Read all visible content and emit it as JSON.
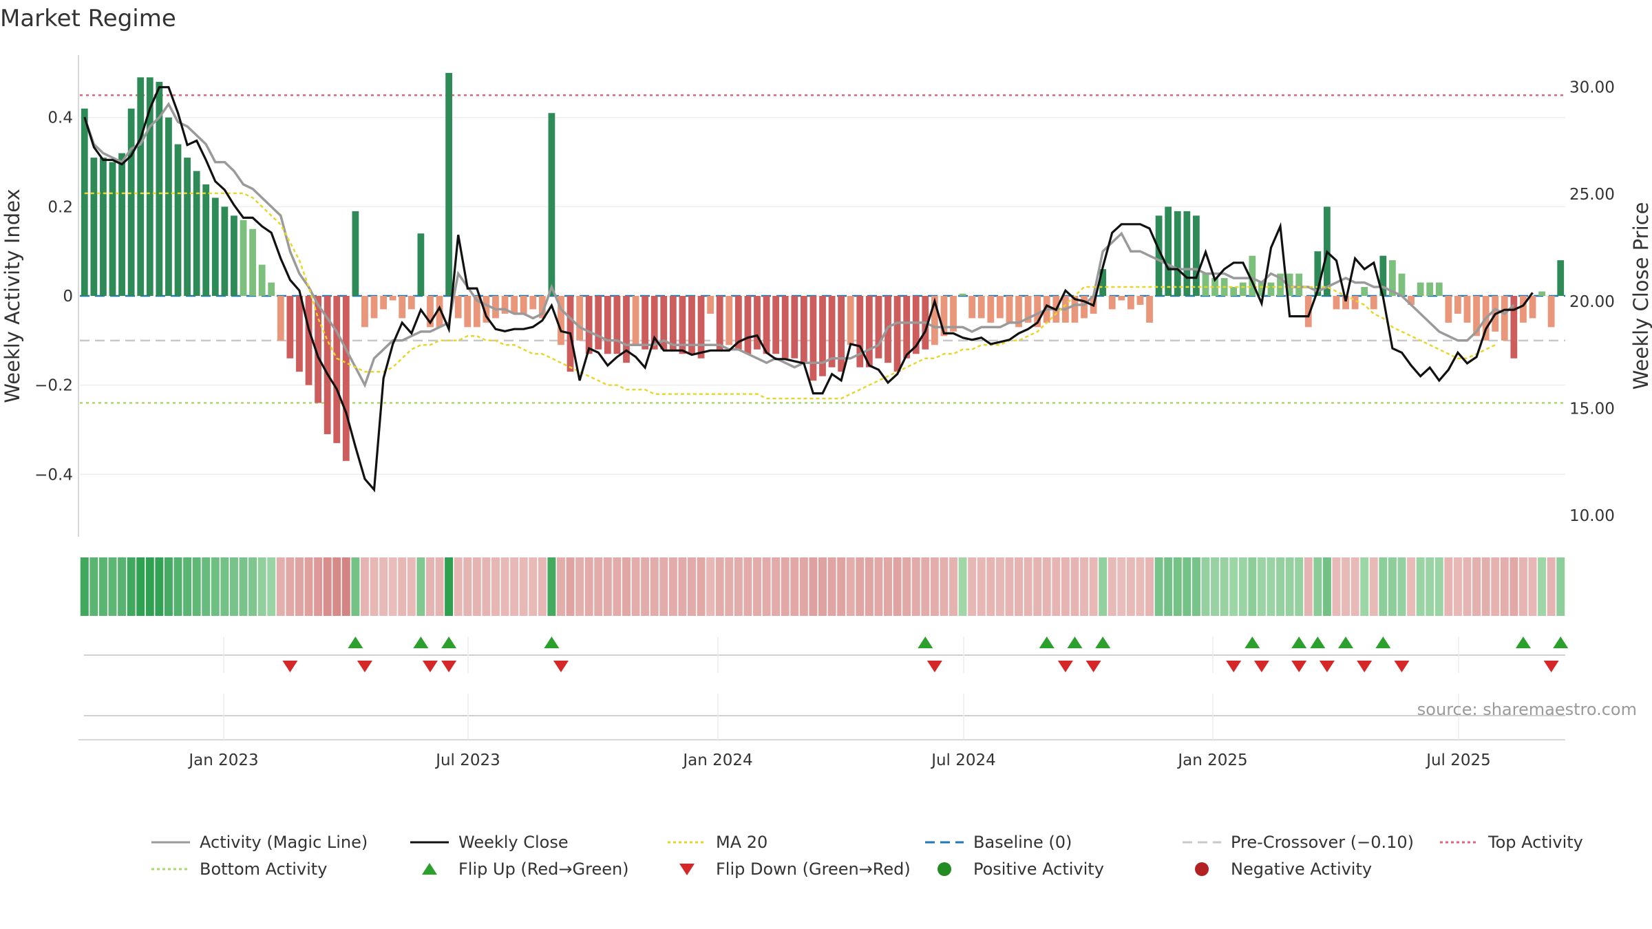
{
  "title": "Market Regime",
  "source": "source: sharemaestro.com",
  "colors": {
    "bar_pos_strong": "#2e8b57",
    "bar_pos_light": "#7dbf7d",
    "bar_neg_strong": "#cd5c5c",
    "bar_neg_light": "#e9967a",
    "magic_line": "#9a9a9a",
    "weekly_close": "#111111",
    "ma20": "#e8d62b",
    "baseline": "#1f77b4",
    "pre_crossover": "#c8c8c8",
    "top_activity": "#e06478",
    "bottom_activity": "#a6d96a",
    "flip_up": "#2ca02c",
    "flip_down": "#d62728",
    "positive": "#228b22",
    "negative": "#b22222"
  },
  "chart_data": {
    "type": "bar",
    "title": "Market Regime",
    "ylabel": "Weekly Activity Index",
    "y2label": "Weekly Close Price",
    "ylim": [
      -0.54,
      0.54
    ],
    "y2lim": [
      9.0,
      31.5
    ],
    "yticks": [
      "0.4",
      "0.2",
      "0",
      "−0.2",
      "−0.4"
    ],
    "y2ticks": [
      "30.00",
      "25.00",
      "20.00",
      "15.00",
      "10.00"
    ],
    "xticks": [
      "Jan 2023",
      "Jul 2023",
      "Jan 2024",
      "Jul 2024",
      "Jan 2025",
      "Jul 2025"
    ],
    "reference_lines": {
      "top_activity": 0.45,
      "pre_crossover": -0.1,
      "bottom_activity": -0.24,
      "baseline": 0
    },
    "series": [
      {
        "name": "Activity (Magic Line)",
        "values": [
          0.4,
          0.34,
          0.32,
          0.31,
          0.3,
          0.33,
          0.34,
          0.38,
          0.4,
          0.43,
          0.39,
          0.38,
          0.36,
          0.34,
          0.3,
          0.3,
          0.28,
          0.25,
          0.24,
          0.22,
          0.2,
          0.18,
          0.1,
          0.05,
          0.02,
          -0.02,
          -0.05,
          -0.08,
          -0.12,
          -0.16,
          -0.2,
          -0.14,
          -0.12,
          -0.1,
          -0.1,
          -0.09,
          -0.08,
          -0.08,
          -0.07,
          -0.06,
          0.05,
          0.02,
          -0.01,
          -0.02,
          -0.03,
          -0.03,
          -0.04,
          -0.04,
          -0.05,
          -0.04,
          0.02,
          -0.03,
          -0.05,
          -0.07,
          -0.08,
          -0.09,
          -0.1,
          -0.1,
          -0.11,
          -0.11,
          -0.11,
          -0.11,
          -0.1,
          -0.11,
          -0.11,
          -0.11,
          -0.11,
          -0.11,
          -0.11,
          -0.12,
          -0.12,
          -0.13,
          -0.14,
          -0.15,
          -0.14,
          -0.15,
          -0.16,
          -0.15,
          -0.15,
          -0.15,
          -0.14,
          -0.14,
          -0.14,
          -0.13,
          -0.12,
          -0.11,
          -0.07,
          -0.06,
          -0.06,
          -0.06,
          -0.06,
          -0.07,
          -0.07,
          -0.07,
          -0.07,
          -0.08,
          -0.07,
          -0.07,
          -0.07,
          -0.06,
          -0.06,
          -0.05,
          -0.04,
          -0.03,
          -0.03,
          -0.03,
          -0.02,
          -0.02,
          0.0,
          0.1,
          0.12,
          0.14,
          0.1,
          0.1,
          0.09,
          0.08,
          0.07,
          0.06,
          0.06,
          0.06,
          0.05,
          0.05,
          0.05,
          0.04,
          0.04,
          0.04,
          0.03,
          0.05,
          0.04,
          0.02,
          0.02,
          0.02,
          0.01,
          0.02,
          0.03,
          0.04,
          0.03,
          0.03,
          0.02,
          0.02,
          0.01,
          0.0,
          -0.02,
          -0.04,
          -0.06,
          -0.08,
          -0.09,
          -0.1,
          -0.1,
          -0.08,
          -0.05,
          -0.03,
          -0.04,
          -0.02
        ]
      },
      {
        "name": "Weekly Close",
        "values": [
          28.6,
          27.2,
          26.6,
          26.6,
          26.4,
          26.8,
          27.6,
          29.0,
          30.0,
          30.0,
          28.8,
          27.3,
          27.5,
          26.6,
          25.6,
          25.2,
          24.5,
          23.9,
          23.9,
          23.5,
          23.2,
          22.0,
          21.0,
          20.5,
          18.7,
          17.4,
          16.6,
          15.9,
          14.8,
          13.2,
          11.7,
          11.2,
          16.4,
          18.0,
          19.0,
          18.5,
          19.6,
          19.0,
          19.7,
          18.7,
          23.1,
          20.6,
          20.6,
          19.3,
          18.7,
          18.6,
          18.7,
          18.7,
          18.8,
          19.1,
          19.8,
          18.6,
          18.5,
          16.3,
          17.8,
          17.6,
          17.0,
          17.4,
          17.7,
          17.4,
          16.9,
          18.3,
          17.7,
          17.7,
          17.7,
          17.5,
          17.6,
          17.7,
          17.7,
          17.7,
          18.1,
          18.3,
          18.4,
          17.6,
          17.3,
          17.3,
          17.2,
          17.1,
          15.7,
          15.7,
          16.6,
          16.3,
          18.0,
          17.9,
          17.0,
          16.8,
          16.2,
          16.6,
          17.5,
          17.9,
          18.6,
          20.0,
          18.5,
          18.5,
          18.3,
          18.2,
          18.3,
          18.0,
          18.1,
          18.2,
          18.5,
          18.7,
          19.0,
          19.8,
          19.6,
          20.5,
          20.1,
          20.0,
          19.8,
          21.6,
          23.2,
          23.6,
          23.6,
          23.6,
          23.4,
          22.4,
          21.5,
          21.5,
          21.1,
          21.1,
          22.3,
          21.0,
          21.5,
          21.8,
          21.8,
          20.9,
          19.9,
          22.5,
          23.5,
          19.3,
          19.3,
          19.3,
          20.5,
          22.3,
          21.9,
          20.0,
          22.0,
          21.5,
          21.8,
          20.2,
          17.8,
          17.6,
          17.0,
          16.5,
          16.9,
          16.3,
          16.8,
          17.6,
          17.1,
          17.4,
          18.7,
          19.4,
          19.6,
          19.6,
          19.8,
          20.4
        ]
      },
      {
        "name": "MA 20",
        "values": [
          0.23,
          0.23,
          0.23,
          0.23,
          0.23,
          0.23,
          0.23,
          0.23,
          0.23,
          0.23,
          0.23,
          0.23,
          0.23,
          0.23,
          0.23,
          0.23,
          0.23,
          0.23,
          0.22,
          0.2,
          0.18,
          0.16,
          0.12,
          0.08,
          0.02,
          -0.05,
          -0.1,
          -0.14,
          -0.15,
          -0.16,
          -0.17,
          -0.17,
          -0.17,
          -0.16,
          -0.14,
          -0.12,
          -0.11,
          -0.11,
          -0.1,
          -0.1,
          -0.1,
          -0.09,
          -0.09,
          -0.1,
          -0.1,
          -0.11,
          -0.11,
          -0.12,
          -0.13,
          -0.13,
          -0.14,
          -0.15,
          -0.16,
          -0.17,
          -0.18,
          -0.19,
          -0.2,
          -0.2,
          -0.21,
          -0.21,
          -0.21,
          -0.22,
          -0.22,
          -0.22,
          -0.22,
          -0.22,
          -0.22,
          -0.22,
          -0.22,
          -0.22,
          -0.22,
          -0.22,
          -0.22,
          -0.23,
          -0.23,
          -0.23,
          -0.23,
          -0.23,
          -0.23,
          -0.23,
          -0.23,
          -0.23,
          -0.22,
          -0.21,
          -0.2,
          -0.19,
          -0.18,
          -0.17,
          -0.16,
          -0.15,
          -0.14,
          -0.14,
          -0.13,
          -0.13,
          -0.12,
          -0.12,
          -0.11,
          -0.11,
          -0.11,
          -0.1,
          -0.1,
          -0.09,
          -0.08,
          -0.06,
          -0.04,
          -0.02,
          0.0,
          0.02,
          0.02,
          0.02,
          0.02,
          0.02,
          0.02,
          0.02,
          0.02,
          0.02,
          0.02,
          0.02,
          0.02,
          0.02,
          0.02,
          0.02,
          0.02,
          0.02,
          0.02,
          0.02,
          0.02,
          0.02,
          0.02,
          0.02,
          0.02,
          0.02,
          0.02,
          0.02,
          0.01,
          0.0,
          -0.01,
          -0.02,
          -0.04,
          -0.05,
          -0.07,
          -0.08,
          -0.09,
          -0.1,
          -0.11,
          -0.12,
          -0.13,
          -0.14,
          -0.14,
          -0.13,
          -0.12,
          -0.11
        ]
      },
      {
        "name": "Weekly Activity Index",
        "values": [
          0.42,
          0.31,
          0.31,
          0.3,
          0.32,
          0.42,
          0.49,
          0.49,
          0.48,
          0.4,
          0.34,
          0.31,
          0.28,
          0.25,
          0.22,
          0.2,
          0.18,
          0.17,
          0.15,
          0.07,
          0.03,
          -0.1,
          -0.14,
          -0.17,
          -0.2,
          -0.24,
          -0.31,
          -0.33,
          -0.37,
          0.19,
          -0.07,
          -0.05,
          -0.03,
          -0.01,
          -0.05,
          -0.03,
          0.14,
          -0.07,
          -0.07,
          0.5,
          -0.05,
          -0.07,
          -0.07,
          -0.06,
          -0.05,
          -0.04,
          -0.04,
          -0.04,
          -0.03,
          -0.05,
          0.41,
          -0.11,
          -0.17,
          -0.1,
          -0.13,
          -0.12,
          -0.13,
          -0.13,
          -0.15,
          -0.11,
          -0.12,
          -0.12,
          -0.12,
          -0.12,
          -0.13,
          -0.13,
          -0.14,
          -0.04,
          -0.12,
          -0.11,
          -0.12,
          -0.13,
          -0.12,
          -0.13,
          -0.13,
          -0.14,
          -0.14,
          -0.15,
          -0.19,
          -0.18,
          -0.16,
          -0.17,
          -0.11,
          -0.16,
          -0.16,
          -0.14,
          -0.15,
          -0.17,
          -0.14,
          -0.13,
          -0.12,
          -0.11,
          -0.09,
          -0.08,
          0.005,
          -0.05,
          -0.05,
          -0.06,
          -0.05,
          -0.06,
          -0.07,
          -0.06,
          -0.07,
          -0.06,
          -0.06,
          -0.06,
          -0.06,
          -0.05,
          -0.04,
          0.06,
          -0.03,
          -0.01,
          -0.03,
          -0.02,
          -0.06,
          0.18,
          0.2,
          0.19,
          0.19,
          0.18,
          0.05,
          0.04,
          0.04,
          0.02,
          0.03,
          0.09,
          0.03,
          0.03,
          0.05,
          0.05,
          0.05,
          -0.07,
          0.1,
          0.2,
          -0.03,
          -0.03,
          -0.03,
          0.02,
          -0.03,
          0.09,
          0.08,
          0.05,
          -0.02,
          0.03,
          0.03,
          0.03,
          -0.06,
          -0.04,
          -0.06,
          -0.09,
          -0.1,
          -0.08,
          -0.1,
          -0.14,
          -0.06,
          -0.05,
          0.01,
          -0.07,
          0.08
        ]
      }
    ],
    "regime": [
      0.42,
      0.31,
      0.31,
      0.3,
      0.32,
      0.42,
      0.49,
      0.49,
      0.48,
      0.4,
      0.34,
      0.31,
      0.28,
      0.25,
      0.22,
      0.2,
      0.18,
      0.17,
      0.15,
      0.07,
      0.03,
      -0.1,
      -0.14,
      -0.17,
      -0.2,
      -0.24,
      -0.31,
      -0.33,
      -0.37,
      0.19,
      -0.07,
      -0.05,
      -0.03,
      -0.01,
      -0.05,
      -0.03,
      0.14,
      -0.07,
      -0.07,
      0.5,
      -0.05,
      -0.07,
      -0.07,
      -0.06,
      -0.05,
      -0.04,
      -0.04,
      -0.04,
      -0.03,
      -0.05,
      0.41,
      -0.11,
      -0.17,
      -0.1,
      -0.13,
      -0.12,
      -0.13,
      -0.13,
      -0.15,
      -0.11,
      -0.12,
      -0.12,
      -0.12,
      -0.12,
      -0.13,
      -0.13,
      -0.14,
      -0.04,
      -0.12,
      -0.11,
      -0.12,
      -0.13,
      -0.12,
      -0.13,
      -0.13,
      -0.14,
      -0.14,
      -0.15,
      -0.19,
      -0.18,
      -0.16,
      -0.17,
      -0.11,
      -0.16,
      -0.16,
      -0.14,
      -0.15,
      -0.17,
      -0.14,
      -0.13,
      -0.12,
      -0.11,
      -0.09,
      -0.08,
      0.005,
      -0.05,
      -0.05,
      -0.06,
      -0.05,
      -0.06,
      -0.07,
      -0.06,
      -0.07,
      -0.06,
      -0.06,
      -0.06,
      -0.06,
      -0.05,
      -0.04,
      0.06,
      -0.03,
      -0.01,
      -0.03,
      -0.02,
      -0.06,
      0.18,
      0.2,
      0.19,
      0.19,
      0.18,
      0.05,
      0.04,
      0.04,
      0.02,
      0.03,
      0.09,
      0.03,
      0.03,
      0.05,
      0.05,
      0.05,
      -0.07,
      0.1,
      0.2,
      -0.03,
      -0.03,
      -0.03,
      0.02,
      -0.03,
      0.09,
      0.08,
      0.05,
      -0.02,
      0.03,
      0.03,
      0.03,
      -0.06,
      -0.04,
      -0.06,
      -0.09,
      -0.1,
      -0.08,
      -0.1,
      -0.14,
      -0.06,
      -0.05,
      0.01,
      -0.07,
      0.08
    ],
    "flip_up_weeks": [
      29,
      36,
      39,
      50,
      90,
      103,
      106,
      109,
      125,
      130,
      132,
      135,
      139,
      154,
      158
    ],
    "flip_down_weeks": [
      22,
      30,
      37,
      39,
      51,
      91,
      105,
      108,
      123,
      126,
      130,
      133,
      137,
      141,
      157
    ]
  },
  "legend": [
    {
      "label": "Activity (Magic Line)",
      "kind": "line",
      "color": "#9a9a9a",
      "dash": ""
    },
    {
      "label": "Weekly Close",
      "kind": "line",
      "color": "#111111",
      "dash": ""
    },
    {
      "label": "MA 20",
      "kind": "line",
      "color": "#e8d62b",
      "dash": "4,4"
    },
    {
      "label": "Baseline (0)",
      "kind": "line",
      "color": "#1f77b4",
      "dash": "14,8"
    },
    {
      "label": "Pre-Crossover (−0.10)",
      "kind": "line",
      "color": "#c8c8c8",
      "dash": "14,8"
    },
    {
      "label": "Top Activity",
      "kind": "line",
      "color": "#e06478",
      "dash": "4,4"
    },
    {
      "label": "Bottom Activity",
      "kind": "line",
      "color": "#a6d96a",
      "dash": "4,4"
    },
    {
      "label": "Flip Up (Red→Green)",
      "kind": "up",
      "color": "#2ca02c",
      "dash": ""
    },
    {
      "label": "Flip Down (Green→Red)",
      "kind": "down",
      "color": "#d62728",
      "dash": ""
    },
    {
      "label": "Positive Activity",
      "kind": "dot",
      "color": "#228b22",
      "dash": ""
    },
    {
      "label": "Negative Activity",
      "kind": "dot",
      "color": "#b22222",
      "dash": ""
    }
  ]
}
